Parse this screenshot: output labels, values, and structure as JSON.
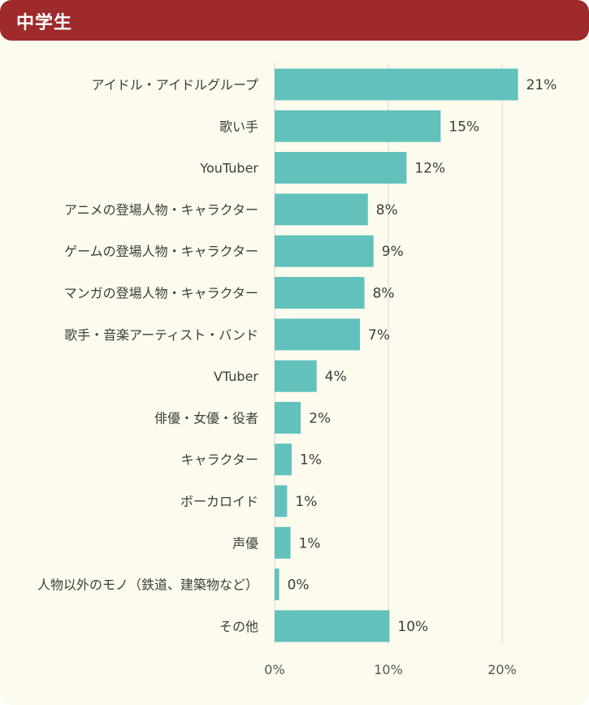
{
  "header": {
    "title": "中学生"
  },
  "chart_data": {
    "type": "bar",
    "orientation": "horizontal",
    "title": "中学生",
    "categories": [
      "アイドル・アイドルグループ",
      "歌い手",
      "YouTuber",
      "アニメの登場人物・キャラクター",
      "ゲームの登場人物・キャラクター",
      "マンガの登場人物・キャラクター",
      "歌手・音楽アーティスト・バンド",
      "VTuber",
      "俳優・女優・役者",
      "キャラクター",
      "ボーカロイド",
      "声優",
      "人物以外のモノ（鉄道、建築物など）",
      "その他"
    ],
    "values": [
      21.4,
      14.6,
      11.6,
      8.2,
      8.7,
      7.9,
      7.5,
      3.7,
      2.3,
      1.5,
      1.1,
      1.4,
      0.4,
      10.1
    ],
    "value_labels": [
      "21%",
      "15%",
      "12%",
      "8%",
      "9%",
      "8%",
      "7%",
      "4%",
      "2%",
      "1%",
      "1%",
      "1%",
      "0%",
      "10%"
    ],
    "xlim": [
      0,
      25
    ],
    "xticks": [
      0,
      10,
      20
    ],
    "xtick_labels": [
      "0%",
      "10%",
      "20%"
    ],
    "grid": true,
    "bar_color": "#62c1bb",
    "grid_color": "#dddddd"
  }
}
